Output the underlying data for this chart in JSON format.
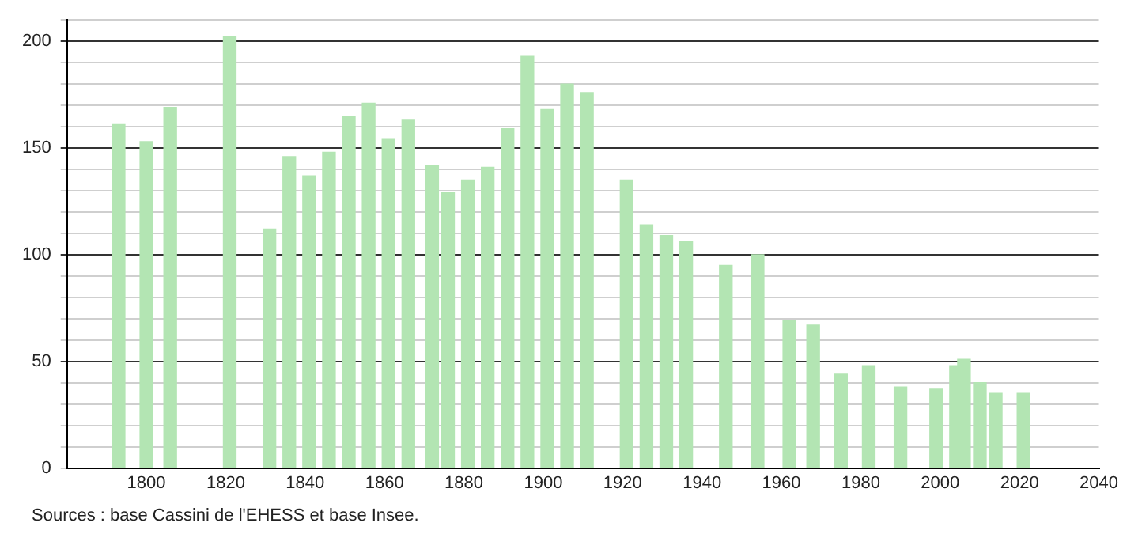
{
  "chart_data": {
    "type": "bar",
    "x": [
      1793,
      1800,
      1806,
      1821,
      1831,
      1836,
      1841,
      1846,
      1851,
      1856,
      1861,
      1866,
      1872,
      1876,
      1881,
      1886,
      1891,
      1896,
      1901,
      1906,
      1911,
      1921,
      1926,
      1931,
      1936,
      1946,
      1954,
      1962,
      1968,
      1975,
      1982,
      1990,
      1999,
      2004,
      2006,
      2010,
      2014,
      2021
    ],
    "values": [
      161,
      153,
      169,
      202,
      112,
      146,
      137,
      148,
      165,
      171,
      154,
      163,
      142,
      129,
      135,
      141,
      159,
      193,
      168,
      180,
      176,
      135,
      114,
      109,
      106,
      95,
      100,
      69,
      67,
      44,
      48,
      38,
      37,
      48,
      51,
      40,
      35,
      35
    ],
    "color": "#b3e5b3",
    "xlim": [
      1780,
      2040
    ],
    "xticks": [
      1800,
      1820,
      1840,
      1860,
      1880,
      1900,
      1920,
      1940,
      1960,
      1980,
      2000,
      2020,
      2040
    ],
    "ylim": [
      0,
      210
    ],
    "yticks": [
      0,
      {
        "value": 10,
        "label": null
      },
      {
        "value": 20,
        "label": null
      },
      {
        "value": 30,
        "label": null
      },
      {
        "value": 40,
        "label": null
      },
      50,
      {
        "value": 60,
        "label": null
      },
      {
        "value": 70,
        "label": null
      },
      {
        "value": 80,
        "label": null
      },
      {
        "value": 90,
        "label": null
      },
      100,
      {
        "value": 110,
        "label": null
      },
      {
        "value": 120,
        "label": null
      },
      {
        "value": 130,
        "label": null
      },
      {
        "value": 140,
        "label": null
      },
      150,
      {
        "value": 160,
        "label": null
      },
      {
        "value": 170,
        "label": null
      },
      {
        "value": 180,
        "label": null
      },
      {
        "value": 190,
        "label": null
      },
      200,
      {
        "value": 210,
        "label": null
      }
    ],
    "grid": "y",
    "annotations": [
      "Sources : base Cassini de l'EHESS et base Insee."
    ]
  }
}
